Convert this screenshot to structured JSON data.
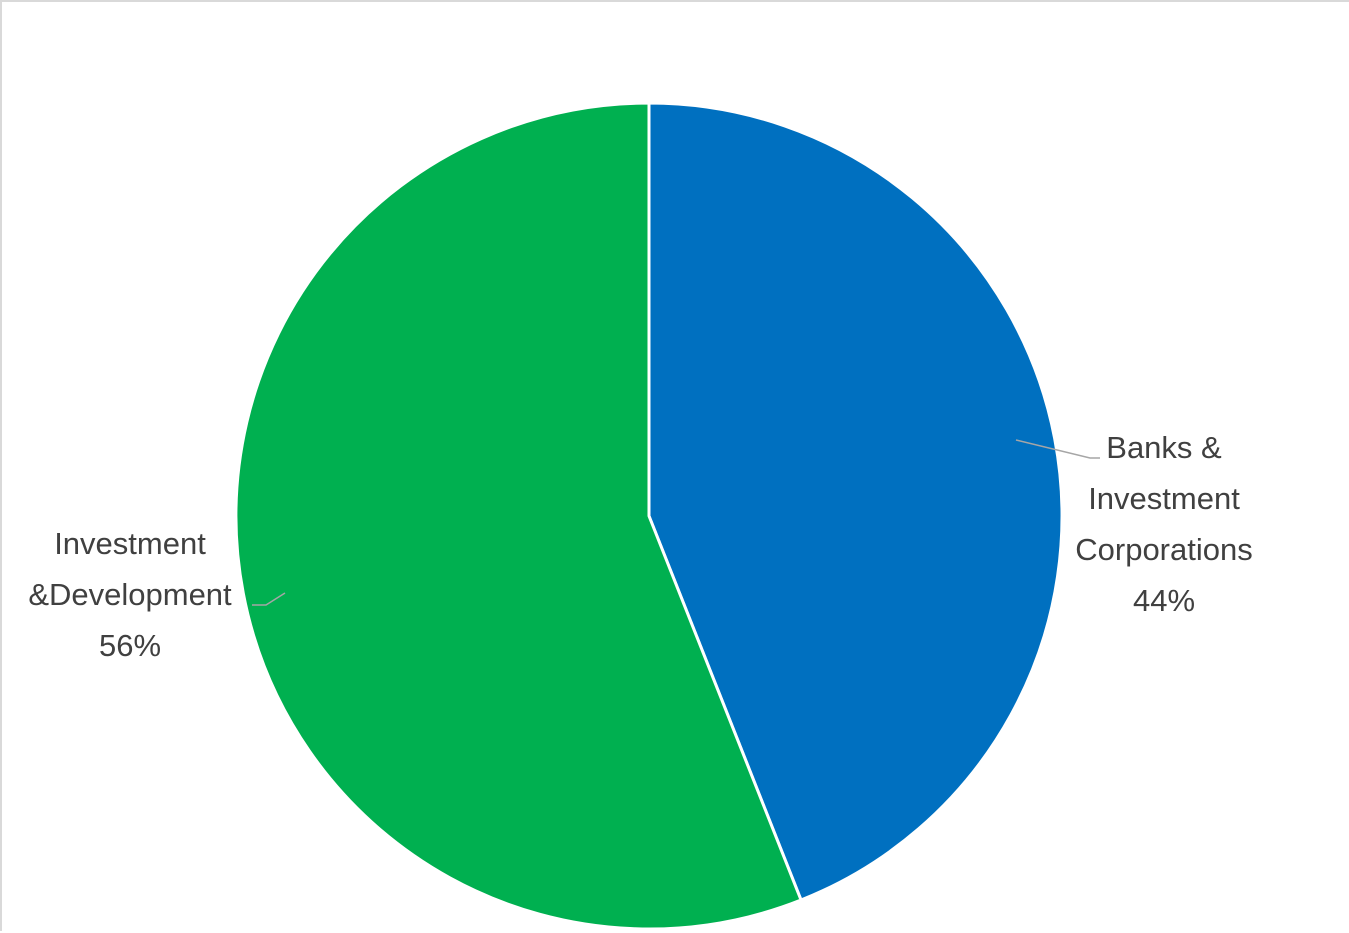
{
  "chart_data": {
    "type": "pie",
    "title": "",
    "slices": [
      {
        "label_lines": [
          "Banks &",
          "Investment",
          "Corporations"
        ],
        "value": 44,
        "percent_label": "44%",
        "color": "#0070c0"
      },
      {
        "label_lines": [
          "Investment",
          "&Development"
        ],
        "value": 56,
        "percent_label": "56%",
        "color": "#00b050"
      }
    ],
    "start": "12 o'clock",
    "direction": "clockwise",
    "legend": "none",
    "leader_line_color": "#a6a6a6",
    "label_color": "#404040"
  }
}
